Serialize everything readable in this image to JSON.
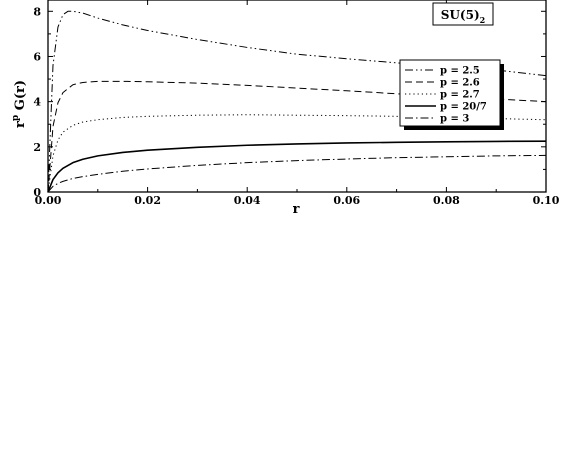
{
  "chart_data": {
    "type": "line",
    "panel_label": "SU(5)",
    "panel_label_subscript": "2",
    "xlabel": "r",
    "ylabel_main": "r",
    "ylabel_sup": "p",
    "ylabel_rest": " G(r)",
    "xlim": [
      0.0,
      0.1
    ],
    "ylim": [
      0,
      8.5
    ],
    "x_ticks": [
      0.0,
      0.02,
      0.04,
      0.06,
      0.08,
      0.1
    ],
    "x_tick_labels": [
      "0.00",
      "0.02",
      "0.04",
      "0.06",
      "0.08",
      "0.10"
    ],
    "y_ticks": [
      0,
      2,
      4,
      6,
      8
    ],
    "y_tick_labels": [
      "0",
      "2",
      "4",
      "6",
      "8"
    ],
    "legend_position": "upper-right",
    "grid": false,
    "series": [
      {
        "name": "p = 2.5",
        "dash": "dash-dot-dot",
        "width": 1,
        "x": [
          0.0,
          0.001,
          0.002,
          0.003,
          0.004,
          0.005,
          0.007,
          0.01,
          0.015,
          0.02,
          0.03,
          0.04,
          0.05,
          0.06,
          0.07,
          0.08,
          0.09,
          0.1
        ],
        "y": [
          0.0,
          5.6,
          7.3,
          7.85,
          8.0,
          8.0,
          7.92,
          7.7,
          7.4,
          7.15,
          6.75,
          6.4,
          6.1,
          5.9,
          5.72,
          5.55,
          5.4,
          5.15
        ]
      },
      {
        "name": "p = 2.6",
        "dash": "dashed",
        "width": 1,
        "x": [
          0.0,
          0.001,
          0.002,
          0.003,
          0.005,
          0.007,
          0.01,
          0.015,
          0.02,
          0.03,
          0.04,
          0.05,
          0.06,
          0.07,
          0.08,
          0.09,
          0.1
        ],
        "y": [
          0.0,
          2.9,
          3.95,
          4.4,
          4.75,
          4.85,
          4.9,
          4.9,
          4.88,
          4.82,
          4.72,
          4.6,
          4.48,
          4.35,
          4.25,
          4.12,
          4.0
        ]
      },
      {
        "name": "p = 2.7",
        "dash": "dotted",
        "width": 1,
        "x": [
          0.0,
          0.001,
          0.002,
          0.003,
          0.005,
          0.007,
          0.01,
          0.015,
          0.02,
          0.03,
          0.04,
          0.05,
          0.06,
          0.07,
          0.08,
          0.09,
          0.1
        ],
        "y": [
          0.0,
          1.6,
          2.3,
          2.65,
          2.95,
          3.1,
          3.2,
          3.3,
          3.35,
          3.4,
          3.42,
          3.4,
          3.38,
          3.35,
          3.3,
          3.25,
          3.2
        ]
      },
      {
        "name": "p = 20/7",
        "dash": "solid",
        "width": 1.6,
        "x": [
          0.0,
          0.001,
          0.002,
          0.003,
          0.005,
          0.007,
          0.01,
          0.015,
          0.02,
          0.03,
          0.04,
          0.05,
          0.06,
          0.07,
          0.08,
          0.09,
          0.1
        ],
        "y": [
          0.0,
          0.55,
          0.85,
          1.05,
          1.3,
          1.45,
          1.6,
          1.75,
          1.85,
          1.98,
          2.07,
          2.13,
          2.17,
          2.2,
          2.22,
          2.24,
          2.25
        ]
      },
      {
        "name": "p = 3",
        "dash": "dash-dot",
        "width": 1,
        "x": [
          0.0,
          0.001,
          0.002,
          0.003,
          0.005,
          0.007,
          0.01,
          0.015,
          0.02,
          0.03,
          0.04,
          0.05,
          0.06,
          0.07,
          0.08,
          0.09,
          0.1
        ],
        "y": [
          0.0,
          0.25,
          0.38,
          0.47,
          0.6,
          0.68,
          0.78,
          0.92,
          1.02,
          1.18,
          1.3,
          1.39,
          1.46,
          1.52,
          1.56,
          1.6,
          1.62
        ]
      }
    ]
  }
}
